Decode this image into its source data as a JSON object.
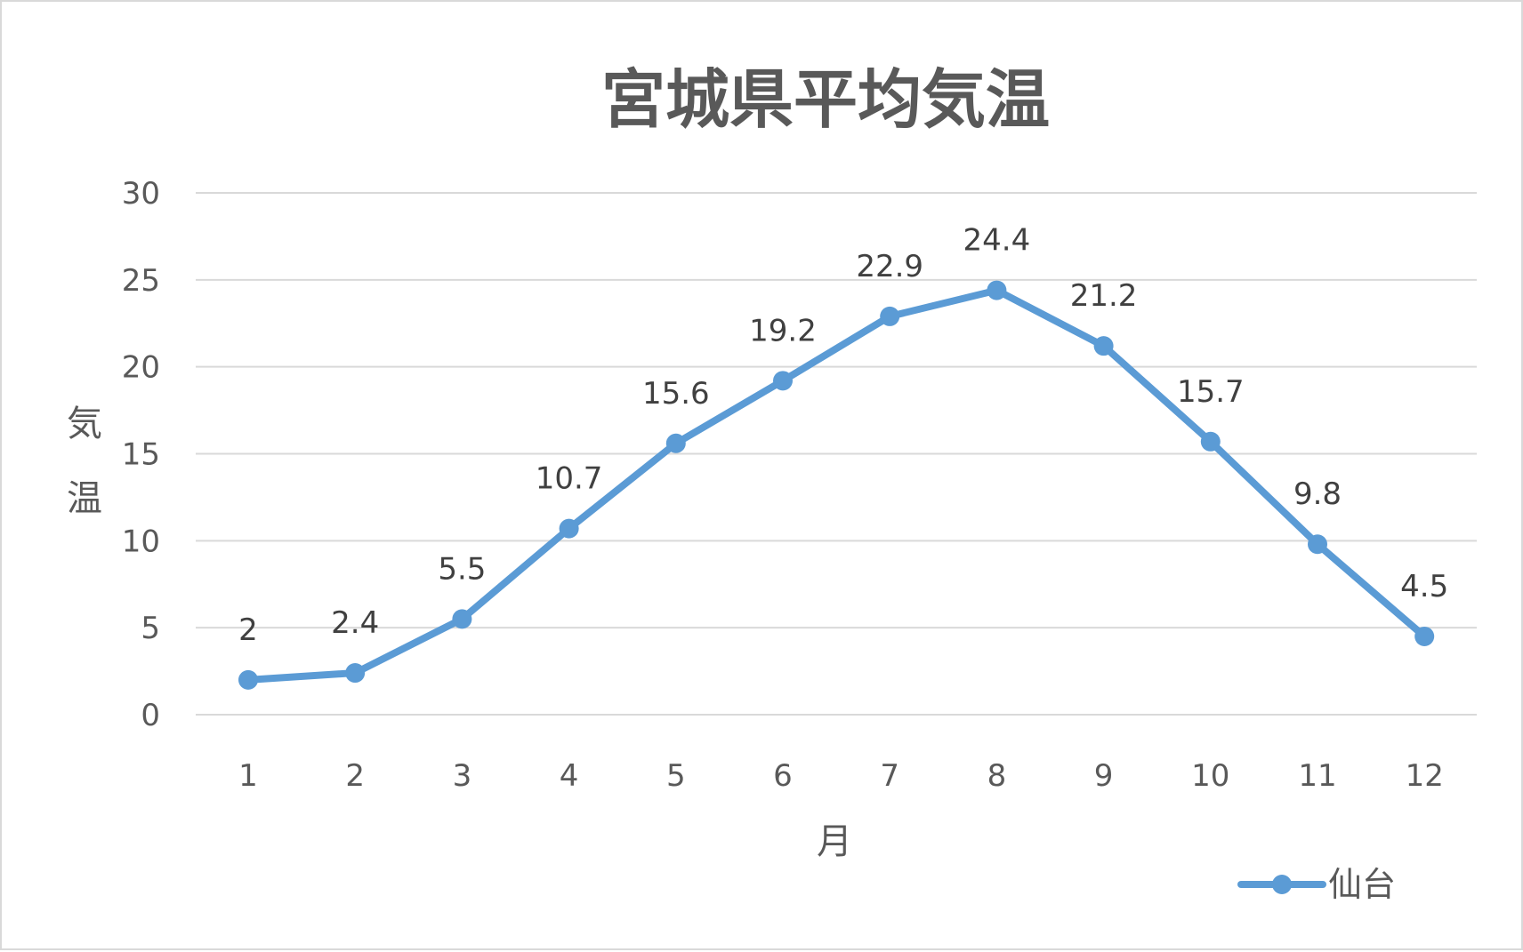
{
  "chart_data": {
    "type": "line",
    "title": "宮城県平均気温",
    "xlabel": "月",
    "ylabel": "気温",
    "ylim": [
      0,
      30
    ],
    "ytick_step": 5,
    "grid": true,
    "legend_position": "bottom-right",
    "categories": [
      "1",
      "2",
      "3",
      "4",
      "5",
      "6",
      "7",
      "8",
      "9",
      "10",
      "11",
      "12"
    ],
    "series": [
      {
        "name": "仙台",
        "color": "#5b9bd5",
        "values": [
          2,
          2.4,
          5.5,
          10.7,
          15.6,
          19.2,
          22.9,
          24.4,
          21.2,
          15.7,
          9.8,
          4.5
        ]
      }
    ]
  }
}
